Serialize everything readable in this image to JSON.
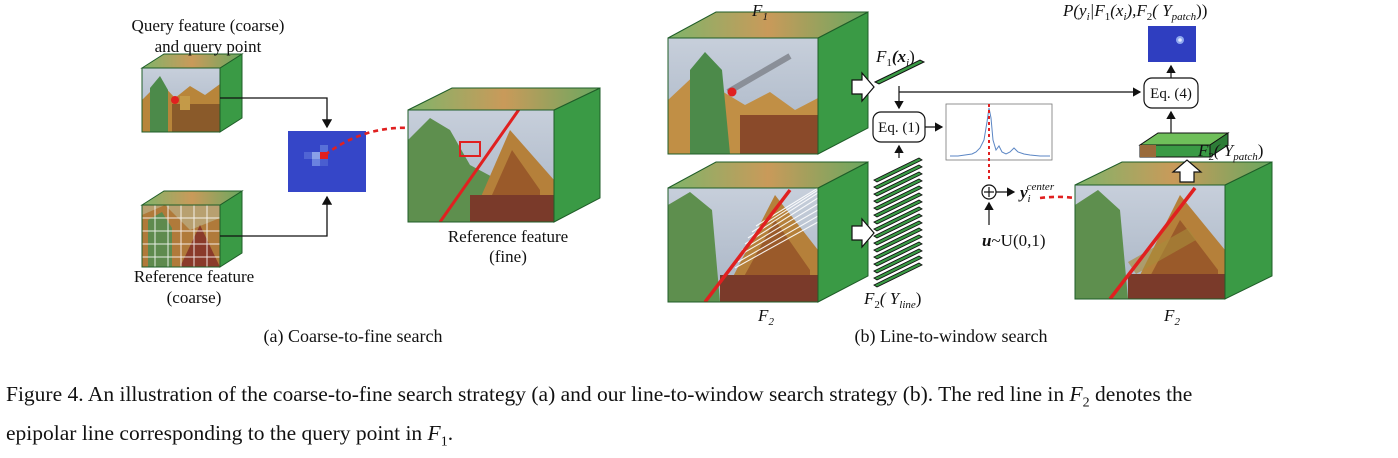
{
  "panel_a": {
    "query_label_1": "Query feature (coarse)",
    "query_label_2": "and query point",
    "ref_coarse_label_1": "Reference feature",
    "ref_coarse_label_2": "(coarse)",
    "ref_fine_label_1": "Reference feature",
    "ref_fine_label_2": "(fine)",
    "subcaption": "(a) Coarse-to-fine search"
  },
  "panel_b": {
    "f1_top": "F",
    "f1_top_sub": "1",
    "f2_bottom": "F",
    "f2_bottom_sub": "2",
    "f2_right": "F",
    "f2_right_sub": "2",
    "f1x_label": "F",
    "f1x_sub": "1",
    "f1x_arg": "(x",
    "f1x_arg_sub": "i",
    "f1x_close": ")",
    "f2line_label": "F",
    "f2line_sub": "2",
    "f2line_arg": "( Y",
    "f2line_arg_sub": "line",
    "f2line_close": ")",
    "eq1": "Eq. (1)",
    "eq4": "Eq. (4)",
    "ycenter": "y",
    "ycenter_sub": "i",
    "ycenter_sup": "center",
    "u_label": "u",
    "u_dist": "~U(0,1)",
    "f2patch_label": "F",
    "f2patch_sub": "2",
    "f2patch_arg": "( Y",
    "f2patch_arg_sub": "patch",
    "f2patch_close": ")",
    "prob_label": "P(y",
    "prob_label_sub": "i",
    "prob_label_rest": "|F",
    "prob_label_rest_sub": "1",
    "prob_label_rest2": "(x",
    "prob_label_rest2_sub": "i",
    "prob_label_rest3": "),F",
    "prob_label_rest3_sub": "2",
    "prob_label_rest4": "( Y",
    "prob_label_rest4_sub": "patch",
    "prob_label_rest5": "))",
    "subcaption": "(b) Line-to-window search"
  },
  "caption": {
    "text_1": "Figure 4. An illustration of the coarse-to-fine search strategy (a) and our line-to-window search strategy (b). The red line in ",
    "f2": "F",
    "f2_sub": "2",
    "text_2": " denotes the",
    "text_3": "epipolar line corresponding to the query point in ",
    "f1": "F",
    "f1_sub": "1",
    "text_4": "."
  },
  "colors": {
    "cube_green": "#3a9a45",
    "cube_green_dark": "#2d7d37",
    "heatmap_blue": "#3546c8",
    "epipolar_red": "#e02020",
    "sky": "#bcc6d4",
    "temple_gold": "#b8853a"
  }
}
